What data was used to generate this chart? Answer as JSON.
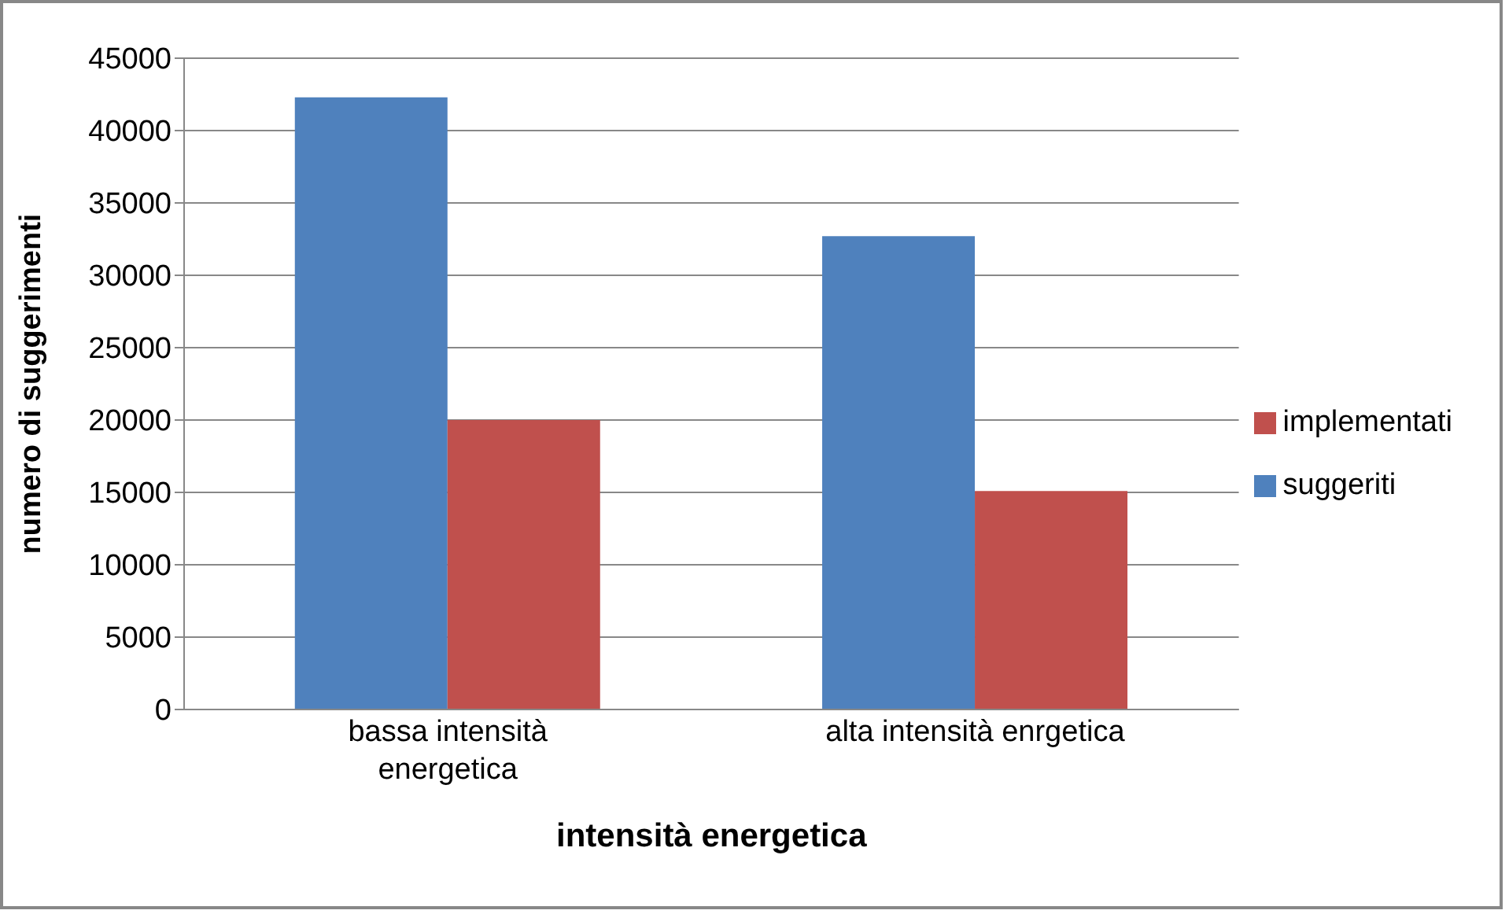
{
  "chart_data": {
    "type": "bar",
    "xlabel": "intensità energetica",
    "ylabel": "numero di suggerimenti",
    "categories": [
      "bassa intensità energetica",
      "alta intensità enrgetica"
    ],
    "series": [
      {
        "name": "suggeriti",
        "color": "#4f81bd",
        "values": [
          42300,
          32700
        ]
      },
      {
        "name": "implementati",
        "color": "#c0504d",
        "values": [
          20000,
          15100
        ]
      }
    ],
    "ylim": [
      0,
      45000
    ],
    "yticks": [
      0,
      5000,
      10000,
      15000,
      20000,
      25000,
      30000,
      35000,
      40000,
      45000
    ],
    "grid": "y",
    "legend": "right"
  }
}
